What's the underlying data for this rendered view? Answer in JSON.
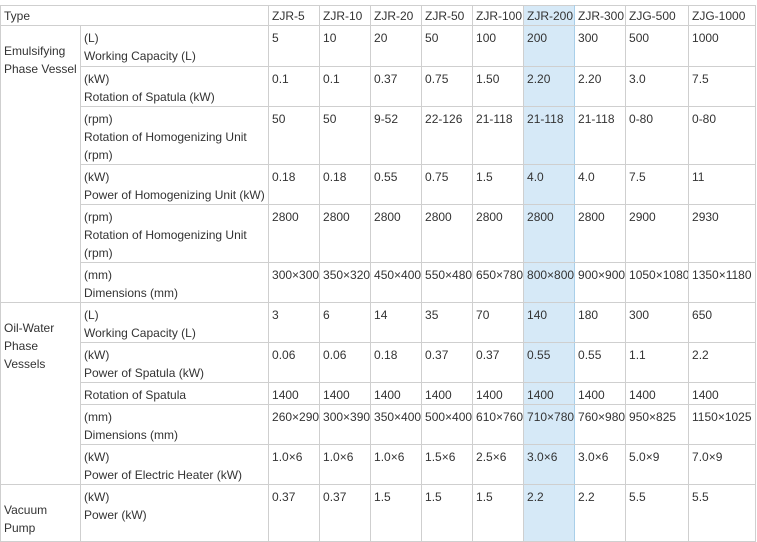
{
  "table": {
    "header": [
      "Type",
      "ZJR-5",
      "ZJR-10",
      "ZJR-20",
      "ZJR-50",
      "ZJR-100",
      "ZJR-200",
      "ZJR-300",
      "ZJG-500",
      "ZJG-1000"
    ],
    "groups": [
      {
        "label": "Emulsifying Phase Vessel",
        "rows": [
          {
            "unit": "(L)",
            "param": "Working Capacity (L)",
            "values": [
              "5",
              "10",
              "20",
              "50",
              "100",
              "200",
              "300",
              "500",
              "1000"
            ]
          },
          {
            "unit": "(kW)",
            "param": "Rotation of Spatula (kW)",
            "values": [
              "0.1",
              "0.1",
              "0.37",
              "0.75",
              "1.50",
              "2.20",
              "2.20",
              "3.0",
              "7.5"
            ]
          },
          {
            "unit": "(rpm)",
            "param": "Rotation of Homogenizing Unit (rpm)",
            "values": [
              "50",
              "50",
              "9-52",
              "22-126",
              "21-118",
              "21-118",
              "21-118",
              "0-80",
              "0-80"
            ]
          },
          {
            "unit": "(kW)",
            "param": "Power of Homogenizing Unit (kW)",
            "values": [
              "0.18",
              "0.18",
              "0.55",
              "0.75",
              "1.5",
              "4.0",
              "4.0",
              "7.5",
              "11"
            ]
          },
          {
            "unit": "(rpm)",
            "param": "Rotation of Homogenizing Unit (rpm)",
            "values": [
              "2800",
              "2800",
              "2800",
              "2800",
              "2800",
              "2800",
              "2800",
              "2900",
              "2930"
            ]
          },
          {
            "unit": "(mm)",
            "param": "Dimensions (mm)",
            "values": [
              "300×300",
              "350×320",
              "450×400",
              "550×480",
              "650×780",
              "800×800",
              "900×900",
              "1050×1080",
              "1350×1180"
            ]
          }
        ]
      },
      {
        "label": "Oil-Water Phase Vessels",
        "rows": [
          {
            "unit": "(L)",
            "param": "Working Capacity (L)",
            "values": [
              "3",
              "6",
              "14",
              "35",
              "70",
              "140",
              "180",
              "300",
              "650"
            ]
          },
          {
            "unit": "(kW)",
            "param": "Power of Spatula (kW)",
            "values": [
              "0.06",
              "0.06",
              "0.18",
              "0.37",
              "0.37",
              "0.55",
              "0.55",
              "1.1",
              "2.2"
            ]
          },
          {
            "param": "Rotation of Spatula",
            "values": [
              "1400",
              "1400",
              "1400",
              "1400",
              "1400",
              "1400",
              "1400",
              "1400",
              "1400"
            ]
          },
          {
            "unit": "(mm)",
            "param": "Dimensions (mm)",
            "values": [
              "260×290",
              "300×390",
              "350×400",
              "500×400",
              "610×760",
              "710×780",
              "760×980",
              "950×825",
              "1150×1025"
            ]
          },
          {
            "unit": "(kW)",
            "param": "Power of Electric Heater (kW)",
            "values": [
              "1.0×6",
              "1.0×6",
              "1.0×6",
              "1.5×6",
              "2.5×6",
              "3.0×6",
              "3.0×6",
              "5.0×9",
              "7.0×9"
            ]
          }
        ]
      },
      {
        "label": "Vacuum Pump",
        "rows": [
          {
            "unit": "(kW)",
            "param": "Power (kW)",
            "values": [
              "0.37",
              "0.37",
              "1.5",
              "1.5",
              "1.5",
              "2.2",
              "2.2",
              "5.5",
              "5.5"
            ]
          }
        ]
      }
    ]
  }
}
